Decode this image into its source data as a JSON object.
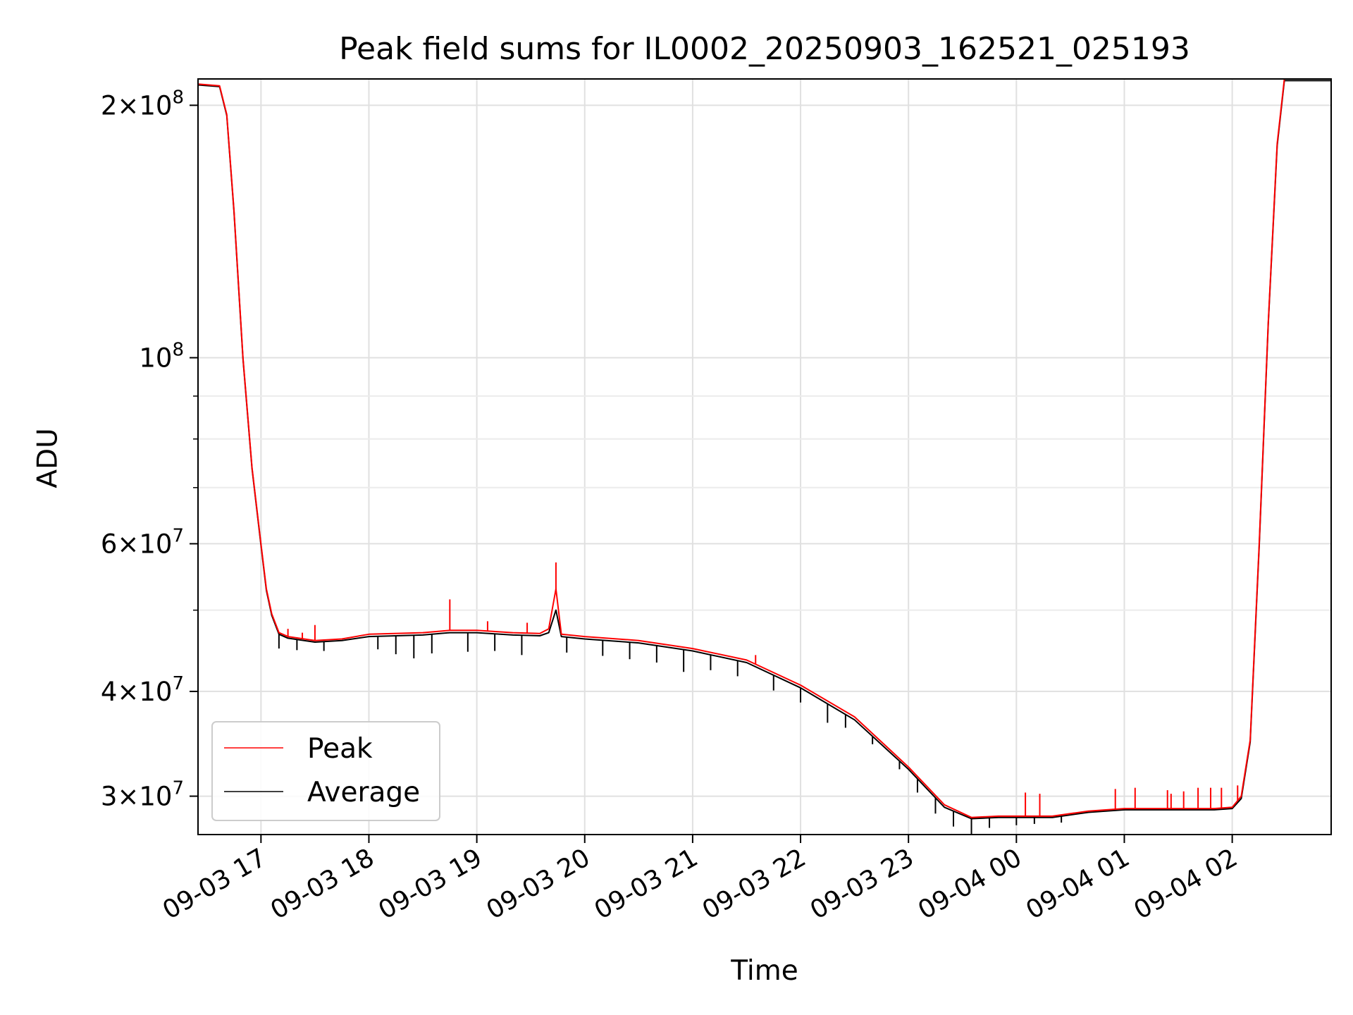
{
  "chart_data": {
    "type": "line",
    "title": "Peak field sums for IL0002_20250903_162521_025193",
    "xlabel": "Time",
    "ylabel": "ADU",
    "y_scale": "log",
    "xlim": [
      "2025-09-03 16:25",
      "2025-09-04 02:55"
    ],
    "ylim": [
      27000000,
      215000000
    ],
    "grid": true,
    "legend_position": "lower-left",
    "x_ticks": [
      "09-03 17",
      "09-03 18",
      "09-03 19",
      "09-03 20",
      "09-03 21",
      "09-03 22",
      "09-03 23",
      "09-04 00",
      "09-04 01",
      "09-04 02"
    ],
    "y_ticks": [
      {
        "value": 200000000,
        "mantissa": "2",
        "exponent": "8"
      },
      {
        "value": 100000000,
        "mantissa": "",
        "exponent": "8"
      },
      {
        "value": 60000000,
        "mantissa": "6",
        "exponent": "7"
      },
      {
        "value": 40000000,
        "mantissa": "4",
        "exponent": "7"
      },
      {
        "value": 30000000,
        "mantissa": "3",
        "exponent": "7"
      }
    ],
    "series": [
      {
        "name": "Peak",
        "color": "#ff0000",
        "points": [
          [
            "2025-09-03 16:25",
            212000000
          ],
          [
            "2025-09-03 16:37",
            211000000
          ],
          [
            "2025-09-03 16:41",
            195000000
          ],
          [
            "2025-09-03 16:45",
            150000000
          ],
          [
            "2025-09-03 16:50",
            100000000
          ],
          [
            "2025-09-03 16:55",
            74000000
          ],
          [
            "2025-09-03 17:00",
            60000000
          ],
          [
            "2025-09-03 17:03",
            53000000
          ],
          [
            "2025-09-03 17:06",
            49500000
          ],
          [
            "2025-09-03 17:10",
            47000000
          ],
          [
            "2025-09-03 17:15",
            46500000
          ],
          [
            "2025-09-03 17:30",
            46000000
          ],
          [
            "2025-09-03 17:45",
            46200000
          ],
          [
            "2025-09-03 18:00",
            46800000
          ],
          [
            "2025-09-03 18:30",
            47000000
          ],
          [
            "2025-09-03 18:45",
            47300000
          ],
          [
            "2025-09-03 19:00",
            47300000
          ],
          [
            "2025-09-03 19:20",
            47000000
          ],
          [
            "2025-09-03 19:35",
            46900000
          ],
          [
            "2025-09-03 19:40",
            47500000
          ],
          [
            "2025-09-03 19:44",
            53000000
          ],
          [
            "2025-09-03 19:47",
            46800000
          ],
          [
            "2025-09-03 20:00",
            46500000
          ],
          [
            "2025-09-03 20:30",
            46000000
          ],
          [
            "2025-09-03 21:00",
            45000000
          ],
          [
            "2025-09-03 21:30",
            43600000
          ],
          [
            "2025-09-03 22:00",
            40700000
          ],
          [
            "2025-09-03 22:30",
            37300000
          ],
          [
            "2025-09-03 23:00",
            32500000
          ],
          [
            "2025-09-03 23:20",
            29300000
          ],
          [
            "2025-09-03 23:35",
            28300000
          ],
          [
            "2025-09-03 23:50",
            28400000
          ],
          [
            "2025-09-04 00:00",
            28400000
          ],
          [
            "2025-09-04 00:20",
            28400000
          ],
          [
            "2025-09-04 00:40",
            28800000
          ],
          [
            "2025-09-04 01:00",
            29000000
          ],
          [
            "2025-09-04 01:20",
            29000000
          ],
          [
            "2025-09-04 01:50",
            29000000
          ],
          [
            "2025-09-04 02:00",
            29100000
          ],
          [
            "2025-09-04 02:05",
            30000000
          ],
          [
            "2025-09-04 02:10",
            35000000
          ],
          [
            "2025-09-04 02:15",
            60000000
          ],
          [
            "2025-09-04 02:20",
            110000000
          ],
          [
            "2025-09-04 02:25",
            180000000
          ],
          [
            "2025-09-04 02:29",
            215000000
          ],
          [
            "2025-09-04 02:55",
            215000000
          ]
        ],
        "spikes": [
          [
            "2025-09-03 17:15",
            47500000
          ],
          [
            "2025-09-03 17:23",
            47000000
          ],
          [
            "2025-09-03 17:30",
            48000000
          ],
          [
            "2025-09-03 18:45",
            51500000
          ],
          [
            "2025-09-03 19:06",
            48500000
          ],
          [
            "2025-09-03 19:28",
            48300000
          ],
          [
            "2025-09-03 19:44",
            57000000
          ],
          [
            "2025-09-03 21:35",
            44200000
          ],
          [
            "2025-09-04 00:05",
            30300000
          ],
          [
            "2025-09-04 00:13",
            30200000
          ],
          [
            "2025-09-04 00:55",
            30600000
          ],
          [
            "2025-09-04 01:06",
            30700000
          ],
          [
            "2025-09-04 01:24",
            30500000
          ],
          [
            "2025-09-04 01:26",
            30200000
          ],
          [
            "2025-09-04 01:33",
            30400000
          ],
          [
            "2025-09-04 01:41",
            30700000
          ],
          [
            "2025-09-04 01:48",
            30700000
          ],
          [
            "2025-09-04 01:54",
            30700000
          ],
          [
            "2025-09-04 02:03",
            30900000
          ]
        ]
      },
      {
        "name": "Average",
        "color": "#000000",
        "points": [
          [
            "2025-09-03 16:25",
            211500000
          ],
          [
            "2025-09-03 16:37",
            210500000
          ],
          [
            "2025-09-03 16:41",
            194500000
          ],
          [
            "2025-09-03 16:45",
            149500000
          ],
          [
            "2025-09-03 16:50",
            99700000
          ],
          [
            "2025-09-03 16:55",
            73800000
          ],
          [
            "2025-09-03 17:00",
            59800000
          ],
          [
            "2025-09-03 17:03",
            52800000
          ],
          [
            "2025-09-03 17:06",
            49300000
          ],
          [
            "2025-09-03 17:10",
            46800000
          ],
          [
            "2025-09-03 17:15",
            46300000
          ],
          [
            "2025-09-03 17:30",
            45800000
          ],
          [
            "2025-09-03 17:45",
            46000000
          ],
          [
            "2025-09-03 18:00",
            46500000
          ],
          [
            "2025-09-03 18:30",
            46700000
          ],
          [
            "2025-09-03 18:45",
            47000000
          ],
          [
            "2025-09-03 19:00",
            47000000
          ],
          [
            "2025-09-03 19:20",
            46700000
          ],
          [
            "2025-09-03 19:35",
            46600000
          ],
          [
            "2025-09-03 19:40",
            47000000
          ],
          [
            "2025-09-03 19:44",
            50000000
          ],
          [
            "2025-09-03 19:47",
            46500000
          ],
          [
            "2025-09-03 20:00",
            46200000
          ],
          [
            "2025-09-03 20:30",
            45700000
          ],
          [
            "2025-09-03 21:00",
            44700000
          ],
          [
            "2025-09-03 21:30",
            43300000
          ],
          [
            "2025-09-03 22:00",
            40400000
          ],
          [
            "2025-09-03 22:30",
            37000000
          ],
          [
            "2025-09-03 23:00",
            32300000
          ],
          [
            "2025-09-03 23:20",
            29100000
          ],
          [
            "2025-09-03 23:35",
            28200000
          ],
          [
            "2025-09-03 23:50",
            28300000
          ],
          [
            "2025-09-04 00:00",
            28300000
          ],
          [
            "2025-09-04 00:20",
            28300000
          ],
          [
            "2025-09-04 00:40",
            28700000
          ],
          [
            "2025-09-04 01:00",
            28900000
          ],
          [
            "2025-09-04 01:20",
            28900000
          ],
          [
            "2025-09-04 01:50",
            28900000
          ],
          [
            "2025-09-04 02:00",
            29000000
          ],
          [
            "2025-09-04 02:05",
            29800000
          ],
          [
            "2025-09-04 02:10",
            34800000
          ],
          [
            "2025-09-04 02:15",
            59600000
          ],
          [
            "2025-09-04 02:20",
            109500000
          ],
          [
            "2025-09-04 02:25",
            179000000
          ],
          [
            "2025-09-04 02:29",
            214000000
          ],
          [
            "2025-09-04 02:55",
            214000000
          ]
        ],
        "dips": [
          [
            "2025-09-03 17:10",
            45000000
          ],
          [
            "2025-09-03 17:20",
            44800000
          ],
          [
            "2025-09-03 17:35",
            44700000
          ],
          [
            "2025-09-03 18:05",
            44900000
          ],
          [
            "2025-09-03 18:15",
            44300000
          ],
          [
            "2025-09-03 18:25",
            43800000
          ],
          [
            "2025-09-03 18:35",
            44400000
          ],
          [
            "2025-09-03 18:55",
            44600000
          ],
          [
            "2025-09-03 19:10",
            44700000
          ],
          [
            "2025-09-03 19:25",
            44200000
          ],
          [
            "2025-09-03 19:50",
            44500000
          ],
          [
            "2025-09-03 20:10",
            44100000
          ],
          [
            "2025-09-03 20:25",
            43700000
          ],
          [
            "2025-09-03 20:40",
            43300000
          ],
          [
            "2025-09-03 20:55",
            42200000
          ],
          [
            "2025-09-03 21:10",
            42400000
          ],
          [
            "2025-09-03 21:25",
            41700000
          ],
          [
            "2025-09-03 21:45",
            40100000
          ],
          [
            "2025-09-03 22:00",
            38800000
          ],
          [
            "2025-09-03 22:15",
            36700000
          ],
          [
            "2025-09-03 22:25",
            36200000
          ],
          [
            "2025-09-03 22:40",
            34600000
          ],
          [
            "2025-09-03 22:55",
            32300000
          ],
          [
            "2025-09-03 23:05",
            30300000
          ],
          [
            "2025-09-03 23:15",
            28600000
          ],
          [
            "2025-09-03 23:25",
            27600000
          ],
          [
            "2025-09-03 23:35",
            26700000
          ],
          [
            "2025-09-03 23:45",
            27500000
          ],
          [
            "2025-09-04 00:00",
            27700000
          ],
          [
            "2025-09-04 00:10",
            27800000
          ],
          [
            "2025-09-04 00:25",
            27900000
          ]
        ]
      }
    ]
  }
}
